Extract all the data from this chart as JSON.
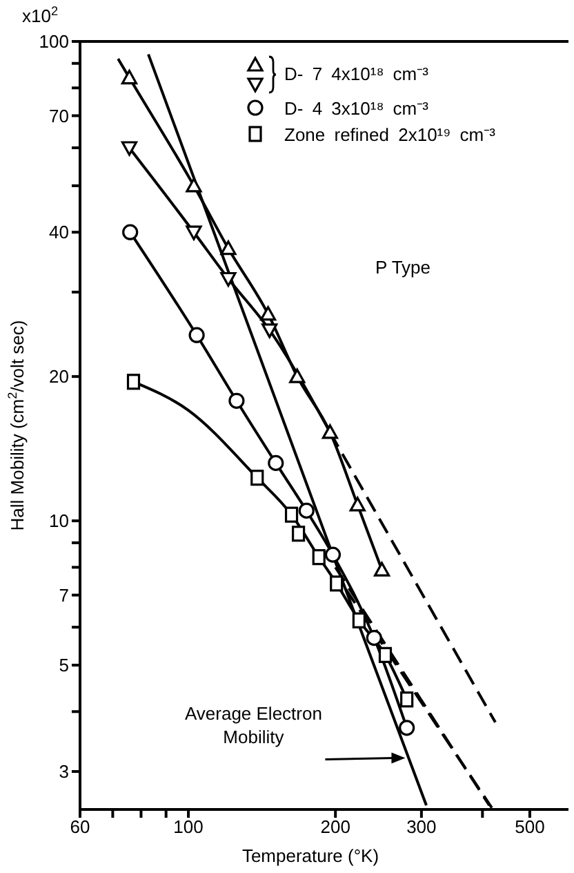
{
  "chart_data": {
    "type": "scatter",
    "xlabel": "Temperature (°K)",
    "ylabel": "Hall Mobility (cm$^{2}$/volt sec)",
    "log": "xy",
    "grid": false,
    "legend": "top right",
    "xlim": [
      60,
      600
    ],
    "xticks": [
      60,
      {
        "value": 70,
        "label": null
      },
      {
        "value": 80,
        "label": null
      },
      {
        "value": 90,
        "label": null
      },
      100,
      200,
      300,
      {
        "value": 400,
        "label": null
      },
      500
    ],
    "ylim": [
      2.5,
      100
    ],
    "yticks": [
      3,
      {
        "value": 4,
        "label": null
      },
      5,
      {
        "value": 6,
        "label": null
      },
      7,
      {
        "value": 8,
        "label": null
      },
      {
        "value": 9,
        "label": null
      },
      10,
      20,
      {
        "value": 30,
        "label": null
      },
      40,
      {
        "value": 50,
        "label": null
      },
      {
        "value": 60,
        "label": null
      },
      70,
      {
        "value": 80,
        "label": null
      },
      {
        "value": 90,
        "label": null
      },
      100
    ],
    "annotations": [
      "x10$^{2}$",
      "P Type",
      {
        "text": "Average Electron Mobility",
        "x": 278,
        "y": 3.2
      }
    ],
    "series": [
      {
        "name": "D- 7 4x10¹⁸ cm⁻³",
        "marker": "triangle",
        "color": "#000000",
        "x": [
          75.7,
          102.6,
          120.7,
          145.6,
          167,
          195,
          222,
          249
        ],
        "values": [
          84,
          50,
          37,
          27,
          20,
          15.3,
          10.8,
          7.9
        ]
      },
      {
        "marker": "triangle-down",
        "color": "#000000",
        "x": [
          75.7,
          102.6,
          120.7,
          146.6
        ],
        "values": [
          60,
          40,
          32,
          25
        ]
      },
      {
        "name": "D- 4 3x10¹⁸ cm⁻³",
        "marker": "circle",
        "color": "#000000",
        "x": [
          76,
          104,
          125.5,
          151,
          174.5,
          197.6,
          240,
          280
        ],
        "values": [
          40,
          24.4,
          17.8,
          13.2,
          10.5,
          8.5,
          5.7,
          3.7
        ]
      },
      {
        "name": "Zone refined 2x10¹⁹ cm⁻³",
        "marker": "square",
        "color": "#000000",
        "x": [
          77.2,
          138.3,
          162.6,
          168,
          185,
          201,
          223.5,
          253,
          280
        ],
        "values": [
          19.5,
          12.3,
          10.3,
          9.4,
          8.4,
          7.4,
          6.2,
          5.25,
          4.24
        ]
      },
      {
        "type": "line",
        "marker": "none",
        "line_style": "solid",
        "color": "#000000",
        "x": [
          71.8,
          75.7,
          102.6,
          120.7,
          145.6,
          167,
          195,
          222,
          249
        ],
        "values": [
          92,
          84,
          50,
          37,
          27,
          20,
          15.3,
          10.8,
          7.9
        ]
      },
      {
        "type": "line",
        "marker": "none",
        "line_style": "solid",
        "color": "#000000",
        "x": [
          75.7,
          102.6,
          120.7,
          146.6,
          195
        ],
        "values": [
          60,
          40,
          32,
          25,
          15.3
        ]
      },
      {
        "type": "line",
        "marker": "none",
        "line_style": "solid",
        "color": "#000000",
        "x": [
          76,
          104,
          125.5,
          151,
          174.5,
          197.6,
          240,
          280
        ],
        "values": [
          40,
          24.4,
          17.8,
          13.2,
          10.5,
          8.5,
          5.7,
          3.7
        ]
      },
      {
        "type": "line",
        "marker": "none",
        "line_style": "solid",
        "color": "#000000",
        "x": [
          77.2,
          100,
          138.3,
          162.6,
          185,
          201,
          223.5,
          253,
          280
        ],
        "values": [
          19.5,
          17,
          12.3,
          10.3,
          8.4,
          7.4,
          6.2,
          5.25,
          4.24
        ]
      },
      {
        "type": "line",
        "marker": "none",
        "line_style": "solid",
        "color": "#000000",
        "x": [
          82.8,
          200,
          307
        ],
        "values": [
          94,
          8.2,
          2.55
        ]
      },
      {
        "type": "line",
        "marker": "none",
        "line_style": "dashed",
        "color": "#000000",
        "x": [
          195,
          425
        ],
        "values": [
          15.3,
          3.8
        ]
      },
      {
        "type": "line",
        "marker": "none",
        "line_style": "dashed",
        "color": "#000000",
        "x": [
          200,
          413
        ],
        "values": [
          8.0,
          2.55
        ]
      },
      {
        "type": "line",
        "marker": "none",
        "line_style": "dashed",
        "color": "#000000",
        "x": [
          210,
          418
        ],
        "values": [
          7.2,
          2.52
        ]
      }
    ]
  }
}
